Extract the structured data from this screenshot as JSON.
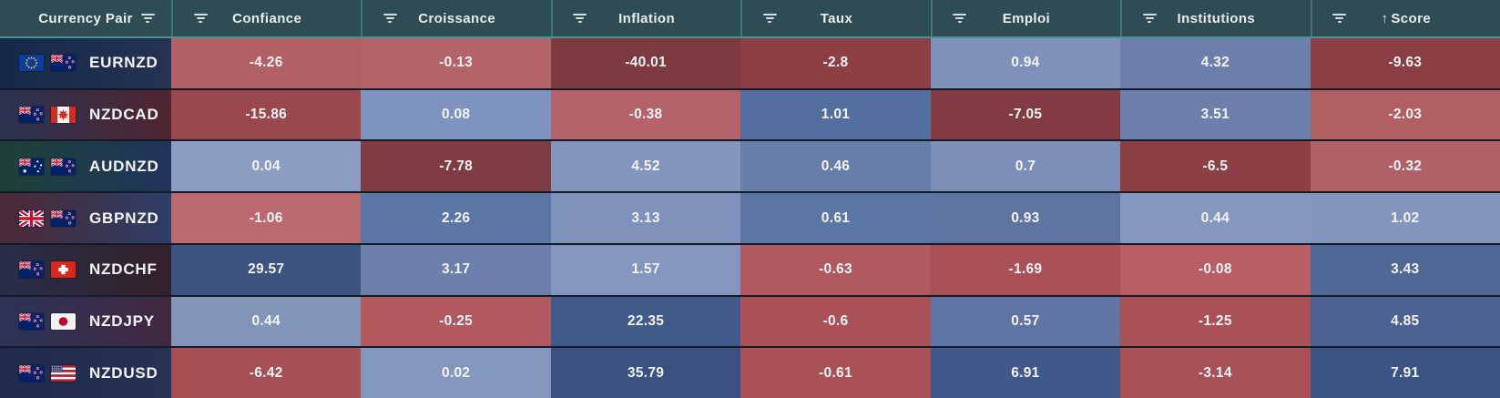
{
  "theme": {
    "header_bg": "#2f4b53",
    "header_divider": "#47737c",
    "header_underline": "#44948f",
    "header_text": "#e9eef0",
    "row_divider": "#121c26",
    "negative_strong": "#7d3a41",
    "negative_soft": "#b5636a",
    "positive_soft": "#8b9cc4",
    "positive_strong": "#3a5181"
  },
  "table": {
    "columns": [
      {
        "key": "pair",
        "label": "Currency Pair"
      },
      {
        "key": "confiance",
        "label": "Confiance"
      },
      {
        "key": "croissance",
        "label": "Croissance"
      },
      {
        "key": "inflation",
        "label": "Inflation"
      },
      {
        "key": "taux",
        "label": "Taux"
      },
      {
        "key": "emploi",
        "label": "Emploi"
      },
      {
        "key": "institutions",
        "label": "Institutions"
      },
      {
        "key": "score",
        "label": "Score",
        "sorted": "asc",
        "sort_icon": "↑"
      }
    ],
    "rows": [
      {
        "pair": "EURNZD",
        "flags": [
          "eu",
          "nz"
        ],
        "pair_bg": [
          "#142947",
          "#263254"
        ],
        "cells": [
          {
            "v": "-4.26",
            "c": "#b25f66"
          },
          {
            "v": "-0.13",
            "c": "#b5636a"
          },
          {
            "v": "-40.01",
            "c": "#7d3a41"
          },
          {
            "v": "-2.8",
            "c": "#8c4046"
          },
          {
            "v": "0.94",
            "c": "#7e91bb"
          },
          {
            "v": "4.32",
            "c": "#6d80ab"
          },
          {
            "v": "-9.63",
            "c": "#8b3f44"
          }
        ]
      },
      {
        "pair": "NZDCAD",
        "flags": [
          "nz",
          "ca"
        ],
        "pair_bg": [
          "#2b3452",
          "#4f2530"
        ],
        "cells": [
          {
            "v": "-15.86",
            "c": "#9a474e"
          },
          {
            "v": "0.08",
            "c": "#7e93c0"
          },
          {
            "v": "-0.38",
            "c": "#b5636a"
          },
          {
            "v": "1.01",
            "c": "#546f9f"
          },
          {
            "v": "-7.05",
            "c": "#833a41"
          },
          {
            "v": "3.51",
            "c": "#6d80ab"
          },
          {
            "v": "-2.03",
            "c": "#b25f64"
          }
        ]
      },
      {
        "pair": "AUDNZD",
        "flags": [
          "au",
          "nz"
        ],
        "pair_bg": [
          "#1d4139",
          "#20345c"
        ],
        "cells": [
          {
            "v": "0.04",
            "c": "#8c9dc4"
          },
          {
            "v": "-7.78",
            "c": "#7f3c42"
          },
          {
            "v": "4.52",
            "c": "#8295bd"
          },
          {
            "v": "0.46",
            "c": "#687da9"
          },
          {
            "v": "0.7",
            "c": "#7b8fb9"
          },
          {
            "v": "-6.5",
            "c": "#8c4046"
          },
          {
            "v": "-0.32",
            "c": "#b06067"
          }
        ]
      },
      {
        "pair": "GBPNZD",
        "flags": [
          "gb",
          "nz"
        ],
        "pair_bg": [
          "#4d2936",
          "#2b3e66"
        ],
        "cells": [
          {
            "v": "-1.06",
            "c": "#bb696e"
          },
          {
            "v": "2.26",
            "c": "#5c76a5"
          },
          {
            "v": "3.13",
            "c": "#7e92bb"
          },
          {
            "v": "0.61",
            "c": "#5b76a4"
          },
          {
            "v": "0.93",
            "c": "#5f73a1"
          },
          {
            "v": "0.44",
            "c": "#8497bf"
          },
          {
            "v": "1.02",
            "c": "#8295bd"
          }
        ]
      },
      {
        "pair": "NZDCHF",
        "flags": [
          "nz",
          "ch"
        ],
        "pair_bg": [
          "#282e4a",
          "#342029"
        ],
        "cells": [
          {
            "v": "29.57",
            "c": "#3c5380"
          },
          {
            "v": "3.17",
            "c": "#6c80ab"
          },
          {
            "v": "1.57",
            "c": "#8496bf"
          },
          {
            "v": "-0.63",
            "c": "#b05960"
          },
          {
            "v": "-1.69",
            "c": "#aa5157"
          },
          {
            "v": "-0.08",
            "c": "#b75f65"
          },
          {
            "v": "3.43",
            "c": "#4f6896"
          }
        ]
      },
      {
        "pair": "NZDJPY",
        "flags": [
          "nz",
          "jp"
        ],
        "pair_bg": [
          "#2b3458",
          "#422840"
        ],
        "cells": [
          {
            "v": "0.44",
            "c": "#8195bb"
          },
          {
            "v": "-0.25",
            "c": "#b2585f"
          },
          {
            "v": "22.35",
            "c": "#425a8a"
          },
          {
            "v": "-0.6",
            "c": "#aa5157"
          },
          {
            "v": "0.57",
            "c": "#5f74a3"
          },
          {
            "v": "-1.25",
            "c": "#aa5157"
          },
          {
            "v": "4.85",
            "c": "#4a6191"
          }
        ]
      },
      {
        "pair": "NZDUSD",
        "flags": [
          "nz",
          "us"
        ],
        "pair_bg": [
          "#1e2b4e",
          "#263255"
        ],
        "cells": [
          {
            "v": "-6.42",
            "c": "#a64f55"
          },
          {
            "v": "0.02",
            "c": "#8396bd"
          },
          {
            "v": "35.79",
            "c": "#3a5181"
          },
          {
            "v": "-0.61",
            "c": "#aa5157"
          },
          {
            "v": "6.91",
            "c": "#41588a"
          },
          {
            "v": "-3.14",
            "c": "#a85258"
          },
          {
            "v": "7.91",
            "c": "#3c5484"
          }
        ]
      }
    ]
  }
}
